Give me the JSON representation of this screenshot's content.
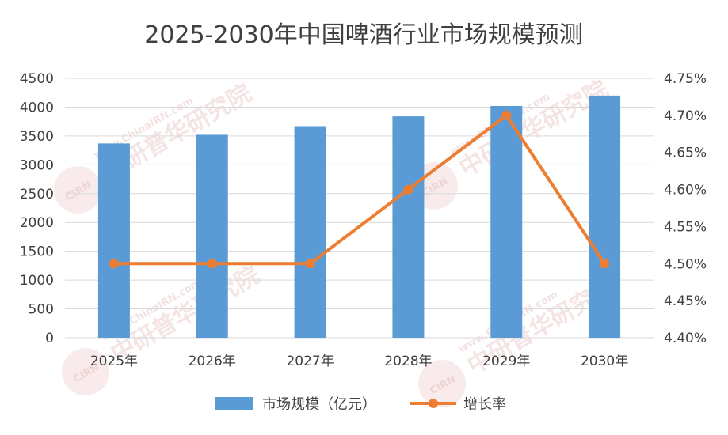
{
  "chart_data": {
    "type": "bar",
    "title": "2025-2030年中国啤酒行业市场规模预测",
    "categories": [
      "2025年",
      "2026年",
      "2027年",
      "2028年",
      "2029年",
      "2030年"
    ],
    "series": [
      {
        "name": "市场规模（亿元）",
        "type": "bar",
        "axis": "left",
        "color": "#5b9bd5",
        "values": [
          3370,
          3520,
          3670,
          3840,
          4020,
          4200
        ]
      },
      {
        "name": "增长率",
        "type": "line",
        "axis": "right",
        "color": "#ed7d31",
        "values": [
          4.5,
          4.5,
          4.5,
          4.6,
          4.7,
          4.5
        ]
      }
    ],
    "y_left": {
      "min": 0,
      "max": 4500,
      "ticks": [
        "0",
        "500",
        "1000",
        "1500",
        "2000",
        "2500",
        "3000",
        "3500",
        "4000",
        "4500"
      ],
      "tick_values": [
        0,
        500,
        1000,
        1500,
        2000,
        2500,
        3000,
        3500,
        4000,
        4500
      ]
    },
    "y_right": {
      "min": 4.4,
      "max": 4.75,
      "ticks": [
        "4.40%",
        "4.45%",
        "4.50%",
        "4.55%",
        "4.60%",
        "4.65%",
        "4.70%",
        "4.75%"
      ],
      "tick_values": [
        4.4,
        4.45,
        4.5,
        4.55,
        4.6,
        4.65,
        4.7,
        4.75
      ]
    },
    "grid": true,
    "legend_position": "bottom"
  },
  "watermark": {
    "brand": "中研普华研究院",
    "url": "www.ChinaIRN.com",
    "logo": "CIRN"
  }
}
